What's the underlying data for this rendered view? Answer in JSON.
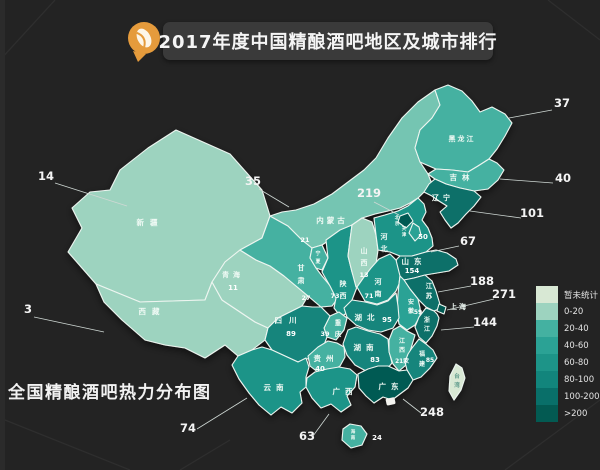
{
  "banner": {
    "title": "2017年度中国精酿酒吧地区及城市排行",
    "icon": "beer-hop-icon",
    "icon_color": "#e59b3c",
    "bg": "#3a3a3a"
  },
  "caption": "全国精酿酒吧热力分布图",
  "legend": {
    "items": [
      {
        "label": "暂未统计",
        "color": "#d8e8d4"
      },
      {
        "label": "0-20",
        "color": "#9dd3bf"
      },
      {
        "label": "20-40",
        "color": "#44b1a1"
      },
      {
        "label": "40-60",
        "color": "#2ba295"
      },
      {
        "label": "60-80",
        "color": "#1d9488"
      },
      {
        "label": "80-100",
        "color": "#12857c"
      },
      {
        "label": "100-200",
        "color": "#096f69"
      },
      {
        "label": ">200",
        "color": "#035a52"
      }
    ]
  },
  "map": {
    "stroke": "#edf5f0",
    "provinces": [
      {
        "id": "xinjiang",
        "name": "新疆",
        "value": "14",
        "bucket": "0-20"
      },
      {
        "id": "xizang",
        "name": "西藏",
        "value": "3",
        "bucket": "0-20"
      },
      {
        "id": "qinghai",
        "name": "青海",
        "value": "11",
        "bucket": "0-20"
      },
      {
        "id": "gansu",
        "name": "甘肃",
        "value": "27",
        "bucket": "20-40"
      },
      {
        "id": "neimenggu",
        "name": "内蒙古",
        "value": "35",
        "bucket": "20-40",
        "color": "#74c5b2"
      },
      {
        "id": "ningxia",
        "name": "宁夏",
        "value": "21",
        "bucket": "20-40"
      },
      {
        "id": "shaanxi",
        "name": "陕西",
        "value": "73",
        "bucket": "60-80"
      },
      {
        "id": "shanxi",
        "name": "山西",
        "value": "13",
        "bucket": "0-20"
      },
      {
        "id": "hebei",
        "name": "河北",
        "value": "67",
        "bucket": "60-80"
      },
      {
        "id": "beijing",
        "name": "北京",
        "value": "219",
        "bucket": ">200"
      },
      {
        "id": "tianjin",
        "name": "天津",
        "value": "50",
        "bucket": "40-60"
      },
      {
        "id": "shandong",
        "name": "山东",
        "value": "154",
        "bucket": "100-200"
      },
      {
        "id": "henan",
        "name": "河南",
        "value": "71",
        "bucket": "60-80"
      },
      {
        "id": "jiangsu",
        "name": "江苏",
        "value": "188",
        "bucket": "100-200"
      },
      {
        "id": "anhui",
        "name": "安徽",
        "value": "59",
        "bucket": "40-60"
      },
      {
        "id": "shanghai",
        "name": "上海",
        "value": "271",
        "bucket": ">200"
      },
      {
        "id": "zhejiang",
        "name": "浙江",
        "value": "144",
        "bucket": "100-200"
      },
      {
        "id": "hubei",
        "name": "湖北",
        "value": "95",
        "bucket": "80-100"
      },
      {
        "id": "chongqing",
        "name": "重庆",
        "value": "39",
        "bucket": "20-40"
      },
      {
        "id": "sichuan",
        "name": "四川",
        "value": "89",
        "bucket": "80-100"
      },
      {
        "id": "hunan",
        "name": "湖南",
        "value": "83",
        "bucket": "80-100"
      },
      {
        "id": "jiangxi",
        "name": "江西",
        "value": "21家",
        "bucket": "20-40"
      },
      {
        "id": "fujian",
        "name": "福建",
        "value": "85",
        "bucket": "80-100"
      },
      {
        "id": "guizhou",
        "name": "贵州",
        "value": "40",
        "bucket": "20-40"
      },
      {
        "id": "yunnan",
        "name": "云南",
        "value": "74",
        "bucket": "60-80"
      },
      {
        "id": "guangxi",
        "name": "广西",
        "value": "63",
        "bucket": "60-80"
      },
      {
        "id": "guangdong",
        "name": "广东",
        "value": "248",
        "bucket": ">200"
      },
      {
        "id": "hainan",
        "name": "海南",
        "value": "24",
        "bucket": "20-40"
      },
      {
        "id": "heilongjiang",
        "name": "黑龙江",
        "value": "37",
        "bucket": "20-40"
      },
      {
        "id": "jilin",
        "name": "吉林",
        "value": "40",
        "bucket": "20-40"
      },
      {
        "id": "liaoning",
        "name": "辽宁",
        "value": "101",
        "bucket": "100-200"
      },
      {
        "id": "taiwan",
        "name": "台湾",
        "value": "",
        "bucket": "暂未统计"
      }
    ]
  },
  "chart_data": {
    "type": "choropleth_map",
    "title": "2017年度中国精酿酒吧地区及城市排行",
    "subtitle": "全国精酿酒吧热力分布图",
    "legend_buckets": [
      "暂未统计",
      "0-20",
      "20-40",
      "40-60",
      "60-80",
      "80-100",
      "100-200",
      ">200"
    ],
    "regions": [
      {
        "name": "上海",
        "value": 271
      },
      {
        "name": "广东",
        "value": 248
      },
      {
        "name": "北京",
        "value": 219
      },
      {
        "name": "江苏",
        "value": 188
      },
      {
        "name": "山东",
        "value": 154
      },
      {
        "name": "浙江",
        "value": 144
      },
      {
        "name": "辽宁",
        "value": 101
      },
      {
        "name": "湖北",
        "value": 95
      },
      {
        "name": "四川",
        "value": 89
      },
      {
        "name": "福建",
        "value": 85
      },
      {
        "name": "湖南",
        "value": 83
      },
      {
        "name": "云南",
        "value": 74
      },
      {
        "name": "陕西",
        "value": 73
      },
      {
        "name": "河南",
        "value": 71
      },
      {
        "name": "河北",
        "value": 67
      },
      {
        "name": "广西",
        "value": 63
      },
      {
        "name": "安徽",
        "value": 59
      },
      {
        "name": "天津",
        "value": 50
      },
      {
        "name": "吉林",
        "value": 40
      },
      {
        "name": "贵州",
        "value": 40
      },
      {
        "name": "重庆",
        "value": 39
      },
      {
        "name": "黑龙江",
        "value": 37
      },
      {
        "name": "内蒙古",
        "value": 35
      },
      {
        "name": "甘肃",
        "value": 27
      },
      {
        "name": "海南",
        "value": 24
      },
      {
        "name": "江西",
        "value": 21
      },
      {
        "name": "宁夏",
        "value": 21
      },
      {
        "name": "新疆",
        "value": 14
      },
      {
        "name": "山西",
        "value": 13
      },
      {
        "name": "青海",
        "value": 11
      },
      {
        "name": "西藏",
        "value": 3
      },
      {
        "name": "台湾",
        "value": "暂未统计"
      }
    ]
  }
}
